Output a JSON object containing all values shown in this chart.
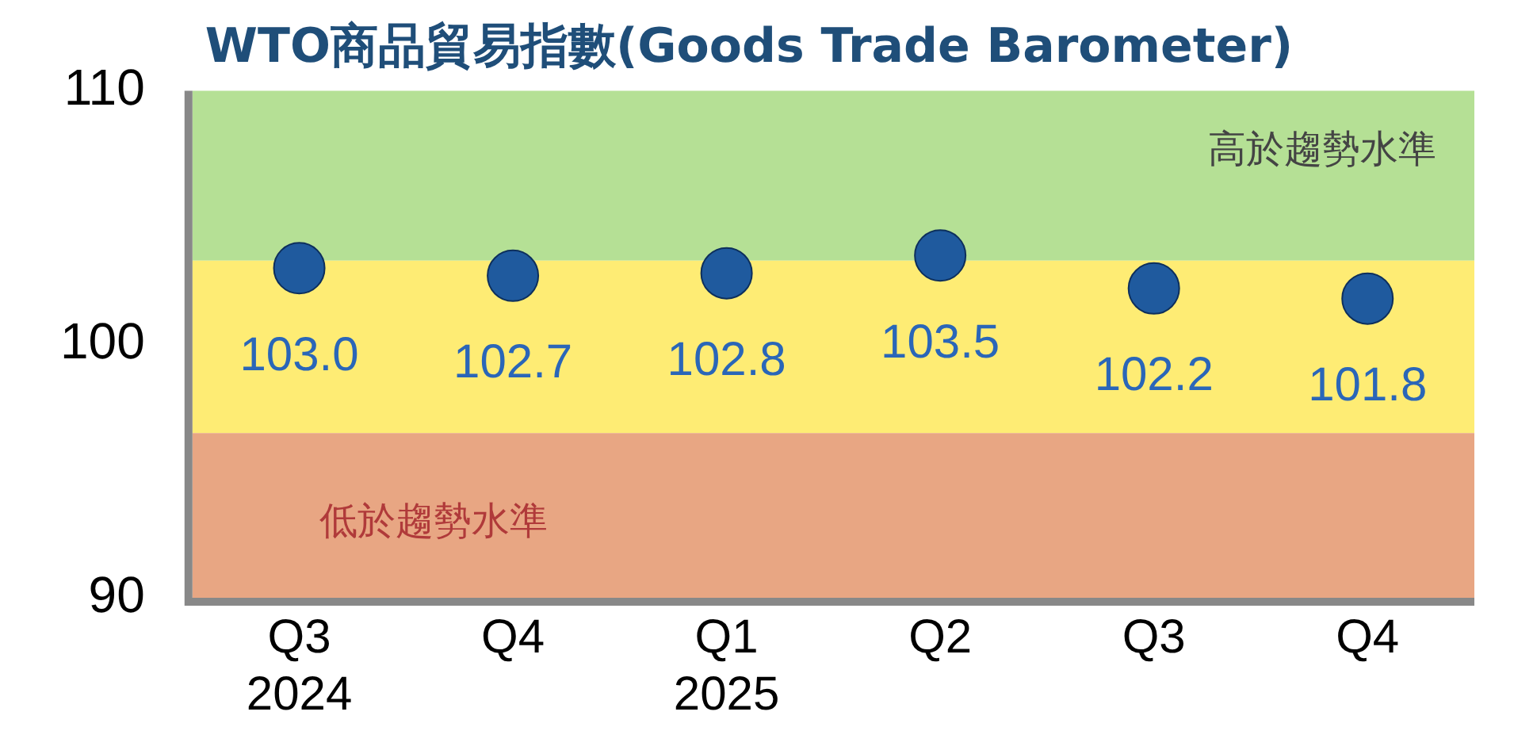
{
  "chart_data": {
    "type": "scatter",
    "title": "WTO商品貿易指數(Goods Trade Barometer)",
    "categories": [
      "Q3 2024",
      "Q4",
      "Q1 2025",
      "Q2",
      "Q3",
      "Q4"
    ],
    "values": [
      103.0,
      102.7,
      102.8,
      103.5,
      102.2,
      101.8
    ],
    "value_labels": [
      "103.0",
      "102.7",
      "102.8",
      "103.5",
      "102.2",
      "101.8"
    ],
    "color": "#1f5a9e",
    "marker": "circle",
    "ylim": [
      90,
      110
    ],
    "yticks": [
      90,
      100,
      110
    ],
    "grid": false,
    "legend": false,
    "bands": [
      {
        "axis": "y",
        "from": 103.3,
        "to": 110,
        "label": "高於趨勢水準",
        "color": "#b5e095"
      },
      {
        "axis": "y",
        "from": 96.5,
        "to": 103.3,
        "color": "#feec74"
      },
      {
        "axis": "y",
        "from": 90,
        "to": 96.5,
        "label": "低於趨勢水準",
        "color": "#e8a683"
      }
    ]
  }
}
